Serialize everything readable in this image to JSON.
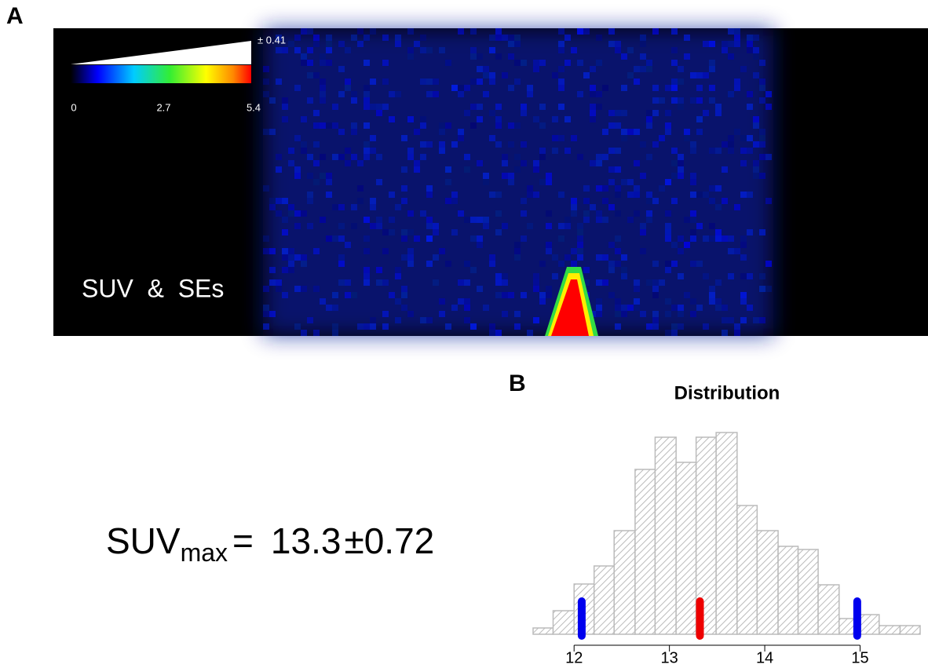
{
  "panel_a": {
    "label": "A",
    "colorbar_ticks": [
      0,
      2.7,
      5.4
    ],
    "se_label": "± 0.41",
    "caption": "SUV  &  SEs"
  },
  "summary": {
    "label": "SUV",
    "subscript": "max",
    "equals": "=",
    "value": "13.3",
    "pm": "±",
    "se": "0.72"
  },
  "chart_data": {
    "type": "histogram",
    "panel_label": "B",
    "title": "Distribution",
    "bins": [
      11.57,
      11.78,
      12.0,
      12.21,
      12.42,
      12.64,
      12.85,
      13.07,
      13.28,
      13.49,
      13.71,
      13.92,
      14.14,
      14.35,
      14.56,
      14.78,
      14.99,
      15.2,
      15.42,
      15.63
    ],
    "counts": [
      8,
      30,
      64,
      87,
      132,
      210,
      251,
      219,
      251,
      257,
      164,
      132,
      112,
      108,
      63,
      20,
      25,
      11,
      11
    ],
    "color": "#bbbbbb",
    "markers": [
      {
        "value": 12.08,
        "color": "#0000ee"
      },
      {
        "value": 13.32,
        "color": "#ee0000"
      },
      {
        "value": 14.97,
        "color": "#0000ee"
      }
    ],
    "xlim": [
      11.57,
      15.63
    ],
    "ylim": [
      0,
      270
    ],
    "xticks": [
      12,
      13,
      14,
      15
    ]
  }
}
